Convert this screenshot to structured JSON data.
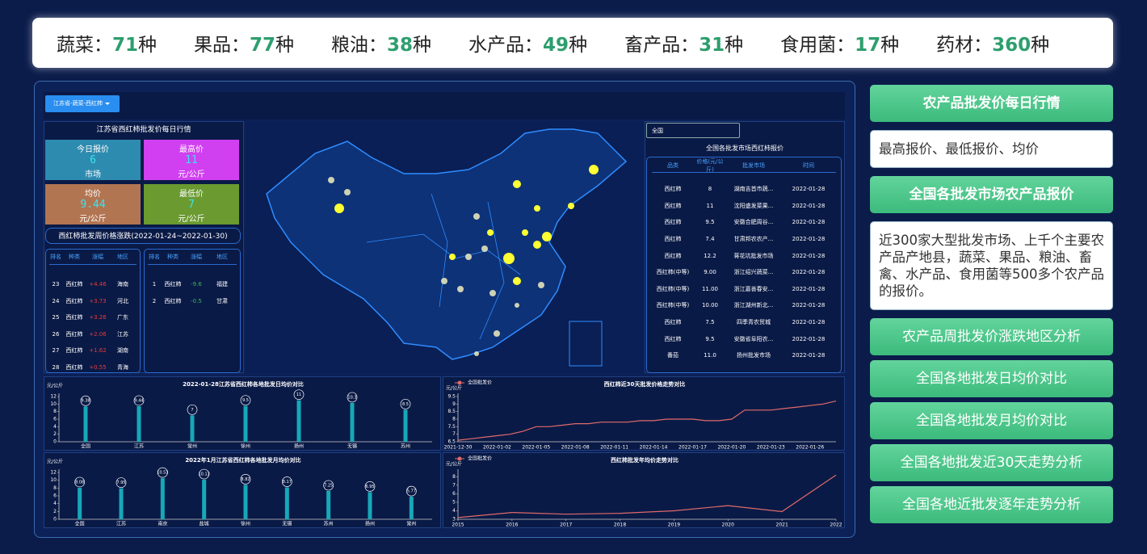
{
  "stats": [
    {
      "label": "蔬菜：",
      "count": 71,
      "unit": "种"
    },
    {
      "label": "果品：",
      "count": 77,
      "unit": "种"
    },
    {
      "label": "粮油：",
      "count": 38,
      "unit": "种"
    },
    {
      "label": "水产品：",
      "count": 49,
      "unit": "种"
    },
    {
      "label": "畜产品：",
      "count": 31,
      "unit": "种"
    },
    {
      "label": "食用菌：",
      "count": 17,
      "unit": "种"
    },
    {
      "label": "药材：",
      "count": 360,
      "unit": "种"
    }
  ],
  "filter": "江苏省-蔬菜-西红柿",
  "daily": {
    "title": "江苏省西红柿批发价每日行情",
    "cards": [
      {
        "label": "今日报价",
        "value": 6,
        "unit": "市场"
      },
      {
        "label": "最高价",
        "value": 11,
        "unit": "元/公斤"
      },
      {
        "label": "均价",
        "value": 9.44,
        "unit": "元/公斤"
      },
      {
        "label": "最低价",
        "value": 7,
        "unit": "元/公斤"
      }
    ]
  },
  "weekly": {
    "title": "西红柿批发周价格涨跌(2022-01-24~2022-01-30)",
    "rise": {
      "columns": [
        "排名",
        "种类",
        "涨幅",
        "地区"
      ],
      "rows": [
        [
          "23",
          "西红柿",
          "+4.46",
          "海南"
        ],
        [
          "24",
          "西红柿",
          "+3.73",
          "河北"
        ],
        [
          "25",
          "西红柿",
          "+3.26",
          "广东"
        ],
        [
          "26",
          "西红柿",
          "+2.06",
          "江苏"
        ],
        [
          "27",
          "西红柿",
          "+1.62",
          "湖南"
        ],
        [
          "28",
          "西红柿",
          "+0.55",
          "青海"
        ]
      ]
    },
    "fall": {
      "columns": [
        "排名",
        "种类",
        "涨幅",
        "地区"
      ],
      "rows": [
        [
          "1",
          "西红柿",
          "-9.6",
          "福建"
        ],
        [
          "2",
          "西红柿",
          "-0.5",
          "甘肃"
        ]
      ]
    }
  },
  "market": {
    "region": "全国",
    "title": "全国各批发市场西红柿报价",
    "columns": [
      "品类",
      "价格(元/公斤)",
      "批发市场",
      "时间"
    ],
    "rows": [
      [
        "西红柿",
        "8",
        "湖南吉首市蔬...",
        "2022-01-28"
      ],
      [
        "西红柿",
        "11",
        "沈阳盛发菜果...",
        "2022-01-28"
      ],
      [
        "西红柿",
        "9.5",
        "安徽合肥周谷...",
        "2022-01-28"
      ],
      [
        "西红柿",
        "7.4",
        "甘肃邦农农产...",
        "2022-01-28"
      ],
      [
        "西红柿",
        "12.2",
        "蒋花坑批发市场",
        "2022-01-28"
      ],
      [
        "西红柿(中等)",
        "9.00",
        "浙江绍兴蔬菜...",
        "2022-01-28"
      ],
      [
        "西红柿(中等)",
        "11.00",
        "浙江嘉善春安...",
        "2022-01-28"
      ],
      [
        "西红柿(中等)",
        "10.00",
        "浙江湖州新北...",
        "2022-01-28"
      ],
      [
        "西红柿",
        "7.5",
        "四季青农贸城",
        "2022-01-28"
      ],
      [
        "西红柿",
        "9.5",
        "安徽省阜阳农...",
        "2022-01-28"
      ],
      [
        "番茄",
        "11.0",
        "扬州批发市场",
        "2022-01-28"
      ]
    ]
  },
  "menu": [
    {
      "title": "农产品批发价每日行情",
      "desc": "最高报价、最低报价、均价"
    },
    {
      "title": "全国各批发市场农产品报价",
      "desc": "近300家大型批发市场、上千个主要农产品产地县，蔬菜、果品、粮油、畜禽、水产品、食用菌等500多个农产品的报价。"
    },
    {
      "title": "农产品周批发价涨跌地区分析"
    },
    {
      "title": "全国各地批发日均价对比"
    },
    {
      "title": "全国各地批发月均价对比"
    },
    {
      "title": "全国各地批发近30天走势分析"
    },
    {
      "title": "全国各地近批发逐年走势分析"
    }
  ],
  "chart_data": [
    {
      "type": "bar",
      "title": "2022-01-28江苏省西红柿各地批发日均价对比",
      "y_label": "元/公斤",
      "categories": [
        "全国",
        "江苏",
        "常州",
        "徐州",
        "扬州",
        "无锡",
        "苏州"
      ],
      "values": [
        9.38,
        9.44,
        7,
        9.5,
        11,
        10.3,
        8.5
      ],
      "color": "#17a8b8",
      "ylim": [
        0,
        12
      ],
      "yticks": [
        0,
        2,
        4,
        6,
        8,
        10,
        12
      ]
    },
    {
      "type": "bar",
      "title": "2022年1月江苏省西红柿各地批发月均价对比",
      "y_label": "元/公斤",
      "categories": [
        "全国",
        "江苏",
        "南京",
        "盐城",
        "徐州",
        "无锡",
        "苏州",
        "扬州",
        "常州"
      ],
      "values": [
        8.08,
        7.95,
        10.53,
        10.13,
        8.82,
        8.17,
        7.25,
        6.95,
        5.77
      ],
      "color": "#17a8b8",
      "ylim": [
        0,
        12
      ],
      "yticks": [
        0,
        2,
        4,
        6,
        8,
        10,
        12
      ]
    },
    {
      "type": "line",
      "title": "西红柿近30天批发价格走势对比",
      "y_label": "元/公斤",
      "categories": [
        "2021-12-30",
        null,
        null,
        "2022-01-02",
        null,
        null,
        "2022-01-05",
        null,
        null,
        "2022-01-08",
        null,
        null,
        "2022-01-11",
        null,
        null,
        "2022-01-14",
        null,
        null,
        "2022-01-17",
        null,
        null,
        "2022-01-20",
        null,
        null,
        "2022-01-23",
        null,
        null,
        "2022-01-26",
        null,
        null
      ],
      "series": [
        {
          "name": "全国批发价",
          "color": "#e06a6a",
          "values": [
            6.6,
            6.7,
            6.8,
            6.9,
            7.0,
            7.2,
            7.5,
            7.5,
            7.6,
            7.7,
            7.7,
            7.8,
            7.8,
            7.8,
            7.9,
            7.9,
            8.0,
            8.0,
            8.0,
            7.9,
            7.9,
            8.0,
            8.6,
            8.6,
            8.6,
            8.7,
            8.8,
            8.9,
            9.0,
            9.2
          ]
        }
      ],
      "ylim": [
        6.5,
        9.5
      ],
      "yticks": [
        6.5,
        7,
        7.5,
        8,
        8.5,
        9,
        9.5
      ]
    },
    {
      "type": "line",
      "title": "西红柿批发年均价走势对比",
      "y_label": "元/公斤",
      "x": [
        2015,
        2016,
        2017,
        2018,
        2019,
        2020,
        2021,
        2022
      ],
      "series": [
        {
          "name": "全国批发价",
          "color": "#e06a6a",
          "values": [
            3.2,
            3.8,
            3.6,
            3.7,
            4.0,
            4.6,
            3.9,
            8.2
          ]
        }
      ],
      "xlim": [
        2015,
        2022
      ],
      "xticks": [
        2015,
        2016,
        2017,
        2018,
        2019,
        2020,
        2021,
        2022
      ],
      "ylim": [
        3,
        8.5
      ],
      "yticks": [
        3,
        4,
        5,
        6,
        7,
        8
      ]
    }
  ]
}
